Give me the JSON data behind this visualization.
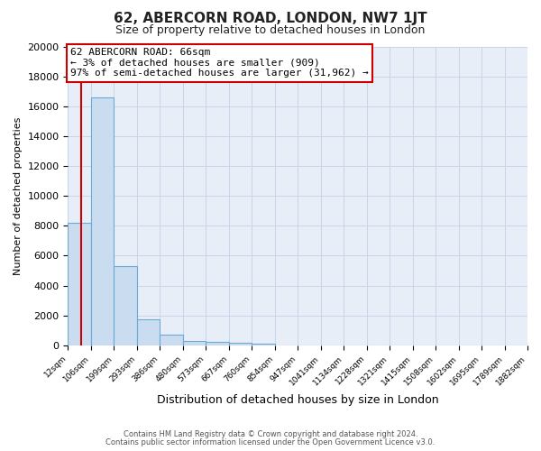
{
  "title": "62, ABERCORN ROAD, LONDON, NW7 1JT",
  "subtitle": "Size of property relative to detached houses in London",
  "xlabel": "Distribution of detached houses by size in London",
  "ylabel": "Number of detached properties",
  "bar_values": [
    8200,
    16600,
    5300,
    1750,
    700,
    300,
    200,
    150,
    120,
    0,
    0,
    0,
    0,
    0,
    0,
    0,
    0,
    0,
    0,
    0
  ],
  "bar_labels": [
    "12sqm",
    "106sqm",
    "199sqm",
    "293sqm",
    "386sqm",
    "480sqm",
    "573sqm",
    "667sqm",
    "760sqm",
    "854sqm",
    "947sqm",
    "1041sqm",
    "1134sqm",
    "1228sqm",
    "1321sqm",
    "1415sqm",
    "1508sqm",
    "1602sqm",
    "1695sqm",
    "1789sqm",
    "1882sqm"
  ],
  "ylim": [
    0,
    20000
  ],
  "yticks": [
    0,
    2000,
    4000,
    6000,
    8000,
    10000,
    12000,
    14000,
    16000,
    18000,
    20000
  ],
  "bar_color": "#c9dcf0",
  "bar_edge_color": "#6aaad4",
  "vline_color": "#cc0000",
  "annotation_box_text": "62 ABERCORN ROAD: 66sqm\n← 3% of detached houses are smaller (909)\n97% of semi-detached houses are larger (31,962) →",
  "annotation_box_color": "#ffffff",
  "annotation_box_edge_color": "#cc0000",
  "grid_color": "#c8d4e8",
  "plot_bg_color": "#e8eef8",
  "fig_bg_color": "#ffffff",
  "footer_line1": "Contains HM Land Registry data © Crown copyright and database right 2024.",
  "footer_line2": "Contains public sector information licensed under the Open Government Licence v3.0."
}
